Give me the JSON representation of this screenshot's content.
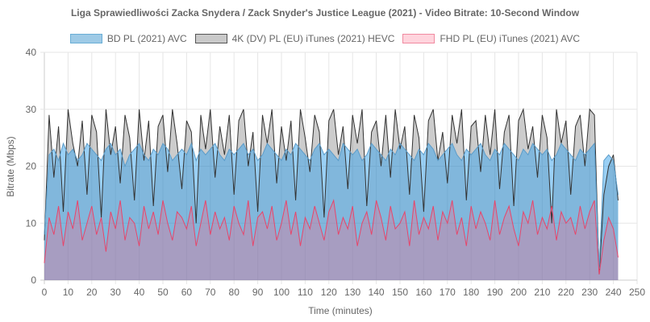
{
  "chart_data": {
    "type": "area",
    "title": "Liga Sprawiedliwości Zacka Snydera / Zack Snyder's Justice League (2021) - Video Bitrate: 10-Second Window",
    "xlabel": "Time (minutes)",
    "ylabel": "Bitrate (Mbps)",
    "xlim": [
      0,
      250
    ],
    "ylim": [
      0,
      40
    ],
    "x_ticks": [
      "0",
      "10",
      "20",
      "30",
      "40",
      "50",
      "60",
      "70",
      "80",
      "90",
      "100",
      "110",
      "120",
      "130",
      "140",
      "150",
      "160",
      "170",
      "180",
      "190",
      "200",
      "210",
      "220",
      "230",
      "240",
      "250"
    ],
    "y_ticks": [
      "0",
      "10",
      "20",
      "30",
      "40"
    ],
    "grid": true,
    "legend_position": "top",
    "x_start": 0,
    "x_step": 2,
    "series": [
      {
        "name": "BD PL (2021) AVC",
        "fill": "rgba(54,162,235,0.5)",
        "border": "#5b9cc9",
        "values": [
          8,
          22,
          23,
          21,
          24,
          22,
          23,
          21,
          22,
          24,
          23,
          22,
          21,
          23,
          24,
          22,
          23,
          20,
          22,
          23,
          24,
          22,
          21,
          23,
          22,
          24,
          23,
          21,
          22,
          23,
          22,
          24,
          21,
          23,
          22,
          23,
          24,
          22,
          21,
          23,
          22,
          23,
          24,
          22,
          23,
          21,
          22,
          24,
          23,
          22,
          21,
          23,
          22,
          24,
          23,
          22,
          21,
          23,
          24,
          22,
          23,
          22,
          21,
          24,
          23,
          22,
          23,
          21,
          22,
          24,
          23,
          22,
          21,
          23,
          22,
          24,
          23,
          22,
          21,
          23,
          22,
          24,
          23,
          21,
          22,
          23,
          24,
          22,
          21,
          23,
          22,
          23,
          24,
          22,
          21,
          23,
          22,
          24,
          23,
          22,
          21,
          23,
          22,
          24,
          23,
          22,
          23,
          21,
          22,
          24,
          23,
          22,
          21,
          23,
          22,
          23,
          24,
          2,
          21,
          22,
          21,
          15
        ]
      },
      {
        "name": "4K (DV) PL (EU) iTunes (2021) HEVC",
        "fill": "rgba(0,0,0,0.2)",
        "border": "#333333",
        "values": [
          7,
          29,
          18,
          27,
          12,
          30,
          24,
          20,
          28,
          15,
          29,
          26,
          11,
          30,
          22,
          27,
          17,
          29,
          25,
          14,
          30,
          21,
          28,
          13,
          27,
          29,
          19,
          30,
          24,
          16,
          28,
          26,
          10,
          29,
          23,
          30,
          18,
          27,
          22,
          29,
          15,
          28,
          30,
          20,
          26,
          12,
          29,
          24,
          30,
          17,
          27,
          21,
          28,
          14,
          30,
          25,
          19,
          29,
          26,
          11,
          28,
          30,
          22,
          27,
          16,
          29,
          24,
          30,
          13,
          26,
          28,
          20,
          29,
          18,
          30,
          23,
          27,
          15,
          29,
          25,
          12,
          28,
          30,
          21,
          26,
          17,
          29,
          24,
          30,
          14,
          27,
          28,
          19,
          29,
          22,
          30,
          16,
          26,
          29,
          13,
          28,
          30,
          23,
          27,
          18,
          29,
          25,
          10,
          30,
          24,
          28,
          15,
          27,
          29,
          20,
          30,
          29,
          1,
          15,
          20,
          22,
          14
        ]
      },
      {
        "name": "FHD PL (EU) iTunes (2021) AVC",
        "fill": "rgba(255,99,132,0.3)",
        "border": "#e8456a",
        "values": [
          3,
          11,
          8,
          13,
          6,
          12,
          9,
          14,
          7,
          10,
          13,
          8,
          11,
          5,
          12,
          9,
          14,
          7,
          11,
          10,
          6,
          13,
          9,
          12,
          8,
          14,
          10,
          7,
          12,
          11,
          9,
          13,
          6,
          10,
          14,
          8,
          12,
          9,
          11,
          7,
          13,
          10,
          8,
          14,
          6,
          11,
          12,
          9,
          13,
          7,
          10,
          14,
          8,
          12,
          6,
          11,
          9,
          13,
          10,
          7,
          12,
          14,
          8,
          11,
          9,
          13,
          6,
          10,
          12,
          8,
          14,
          11,
          7,
          13,
          9,
          10,
          12,
          6,
          14,
          8,
          11,
          9,
          13,
          7,
          12,
          10,
          14,
          8,
          11,
          6,
          13,
          9,
          12,
          10,
          7,
          14,
          8,
          11,
          13,
          9,
          6,
          12,
          10,
          14,
          8,
          11,
          9,
          13,
          7,
          12,
          10,
          11,
          8,
          13,
          9,
          12,
          14,
          1,
          7,
          11,
          9,
          4
        ]
      }
    ],
    "legend_swatches": [
      {
        "fill": "#9ecae6",
        "border": "#6aaed6"
      },
      {
        "fill": "#c9c9c9",
        "border": "#555555"
      },
      {
        "fill": "#ffd4dd",
        "border": "#f08aa0"
      }
    ]
  }
}
